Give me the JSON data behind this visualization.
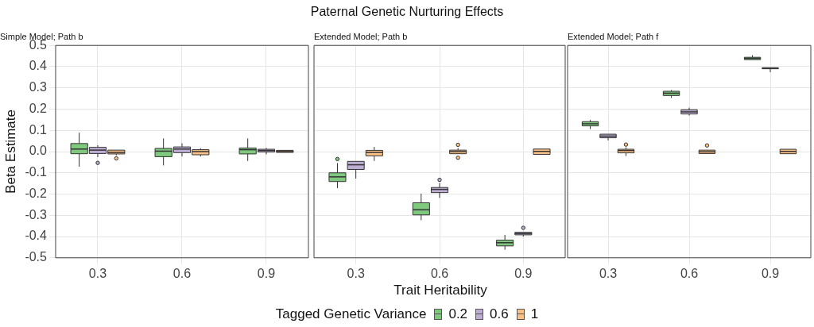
{
  "chart_data": [
    {
      "type": "box",
      "subtitle": "Simple Model; Path b",
      "ylabel": "Beta Estimate",
      "legend_title": "Tagged Genetic Variance",
      "legend": "bottom",
      "grid": true,
      "categories": [
        "0.3",
        "0.6",
        "0.9"
      ],
      "ylim": [
        -0.5,
        0.5
      ],
      "yticks": [
        -0.5,
        -0.4,
        -0.3,
        -0.2,
        -0.1,
        {
          "value": 0,
          "label": "0.0"
        },
        0.1,
        0.2,
        0.3,
        0.4,
        0.5
      ],
      "series": [
        {
          "name": "0.2",
          "color": "#7fc97f",
          "boxes": [
            {
              "low": -0.071,
              "q1": -0.01,
              "median": 0.012,
              "q3": 0.038,
              "high": 0.089
            },
            {
              "low": -0.065,
              "q1": -0.024,
              "median": 0.002,
              "q3": 0.015,
              "high": 0.062
            },
            {
              "low": -0.044,
              "q1": -0.011,
              "median": 0.009,
              "q3": 0.017,
              "high": 0.062
            }
          ]
        },
        {
          "name": "0.6",
          "color": "#beaed4",
          "boxes": [
            {
              "low": -0.026,
              "q1": -0.009,
              "median": 0.007,
              "q3": 0.02,
              "high": 0.03,
              "outliers": [
                -0.053
              ]
            },
            {
              "low": -0.023,
              "q1": -0.005,
              "median": 0.012,
              "q3": 0.022,
              "high": 0.039
            },
            {
              "low": -0.013,
              "q1": -0.002,
              "median": 0.005,
              "q3": 0.011,
              "high": 0.017
            }
          ]
        },
        {
          "name": "1",
          "color": "#fdc086",
          "boxes": [
            {
              "low": -0.018,
              "q1": -0.011,
              "median": -0.004,
              "q3": 0.007,
              "high": 0.007,
              "outliers": [
                -0.032
              ]
            },
            {
              "low": -0.023,
              "q1": -0.015,
              "median": 0,
              "q3": 0.009,
              "high": 0.016
            },
            {
              "low": -0.004,
              "q1": -0.004,
              "median": 0.001,
              "q3": 0.006,
              "high": 0.006
            }
          ]
        }
      ]
    },
    {
      "type": "box",
      "title": "Paternal Genetic Nurturing Effects",
      "subtitle": "Extended Model; Path b",
      "xlabel": "Trait Heritability",
      "grid": true,
      "tick_labels": "x",
      "categories": [
        "0.3",
        "0.6",
        "0.9"
      ],
      "ylim": [
        -0.5,
        0.5
      ],
      "yticks": [
        -0.5,
        -0.4,
        -0.3,
        -0.2,
        -0.1,
        0,
        0.1,
        0.2,
        0.3,
        0.4,
        0.5
      ],
      "series": [
        {
          "color": "#7fc97f",
          "boxes": [
            {
              "low": -0.172,
              "q1": -0.141,
              "median": -0.119,
              "q3": -0.1,
              "high": -0.054,
              "outliers": [
                -0.035
              ]
            },
            {
              "low": -0.323,
              "q1": -0.298,
              "median": -0.274,
              "q3": -0.241,
              "high": -0.198
            },
            {
              "low": -0.462,
              "q1": -0.444,
              "median": -0.429,
              "q3": -0.417,
              "high": -0.392
            }
          ]
        },
        {
          "color": "#beaed4",
          "boxes": [
            {
              "low": -0.127,
              "q1": -0.084,
              "median": -0.062,
              "q3": -0.046,
              "high": -0.046
            },
            {
              "low": -0.218,
              "q1": -0.193,
              "median": -0.178,
              "q3": -0.169,
              "high": -0.148,
              "outliers": [
                -0.133
              ]
            },
            {
              "low": -0.4,
              "q1": -0.392,
              "median": -0.386,
              "q3": -0.38,
              "high": -0.38,
              "outliers": [
                -0.359
              ]
            }
          ]
        },
        {
          "color": "#fdc086",
          "boxes": [
            {
              "low": -0.044,
              "q1": -0.02,
              "median": -0.004,
              "q3": 0.006,
              "high": 0.022
            },
            {
              "low": -0.01,
              "q1": -0.01,
              "median": 0,
              "q3": 0.007,
              "high": 0.017,
              "outliers": [
                0.032,
                -0.029
              ]
            },
            {
              "low": -0.013,
              "q1": -0.013,
              "median": 0.001,
              "q3": 0.012,
              "high": 0.012
            }
          ]
        }
      ]
    },
    {
      "type": "box",
      "subtitle": "Extended Model; Path f",
      "grid": true,
      "tick_labels": "x",
      "categories": [
        "0.3",
        "0.6",
        "0.9"
      ],
      "ylim": [
        -0.5,
        0.5
      ],
      "yticks": [
        -0.5,
        -0.4,
        -0.3,
        -0.2,
        -0.1,
        0,
        0.1,
        0.2,
        0.3,
        0.4,
        0.5
      ],
      "series": [
        {
          "color": "#7fc97f",
          "boxes": [
            {
              "low": 0.106,
              "q1": 0.121,
              "median": 0.131,
              "q3": 0.141,
              "high": 0.149
            },
            {
              "low": 0.253,
              "q1": 0.264,
              "median": 0.275,
              "q3": 0.284,
              "high": 0.29
            },
            {
              "low": 0.433,
              "q1": 0.433,
              "median": 0.439,
              "q3": 0.444,
              "high": 0.454
            }
          ]
        },
        {
          "color": "#beaed4",
          "boxes": [
            {
              "low": 0.053,
              "q1": 0.065,
              "median": 0.073,
              "q3": 0.082,
              "high": 0.082
            },
            {
              "low": 0.17,
              "q1": 0.177,
              "median": 0.187,
              "q3": 0.197,
              "high": 0.207
            },
            {
              "low": 0.374,
              "q1": 0.39,
              "median": 0.392,
              "q3": 0.395,
              "high": 0.395
            }
          ]
        },
        {
          "color": "#fdc086",
          "boxes": [
            {
              "low": -0.021,
              "q1": -0.006,
              "median": 0.005,
              "q3": 0.011,
              "high": 0.02,
              "outliers": [
                0.033
              ]
            },
            {
              "low": -0.009,
              "q1": -0.009,
              "median": -0.001,
              "q3": 0.007,
              "high": 0.007,
              "outliers": [
                0.029
              ]
            },
            {
              "low": -0.01,
              "q1": -0.01,
              "median": 0.001,
              "q3": 0.011,
              "high": 0.011
            }
          ]
        }
      ]
    }
  ]
}
